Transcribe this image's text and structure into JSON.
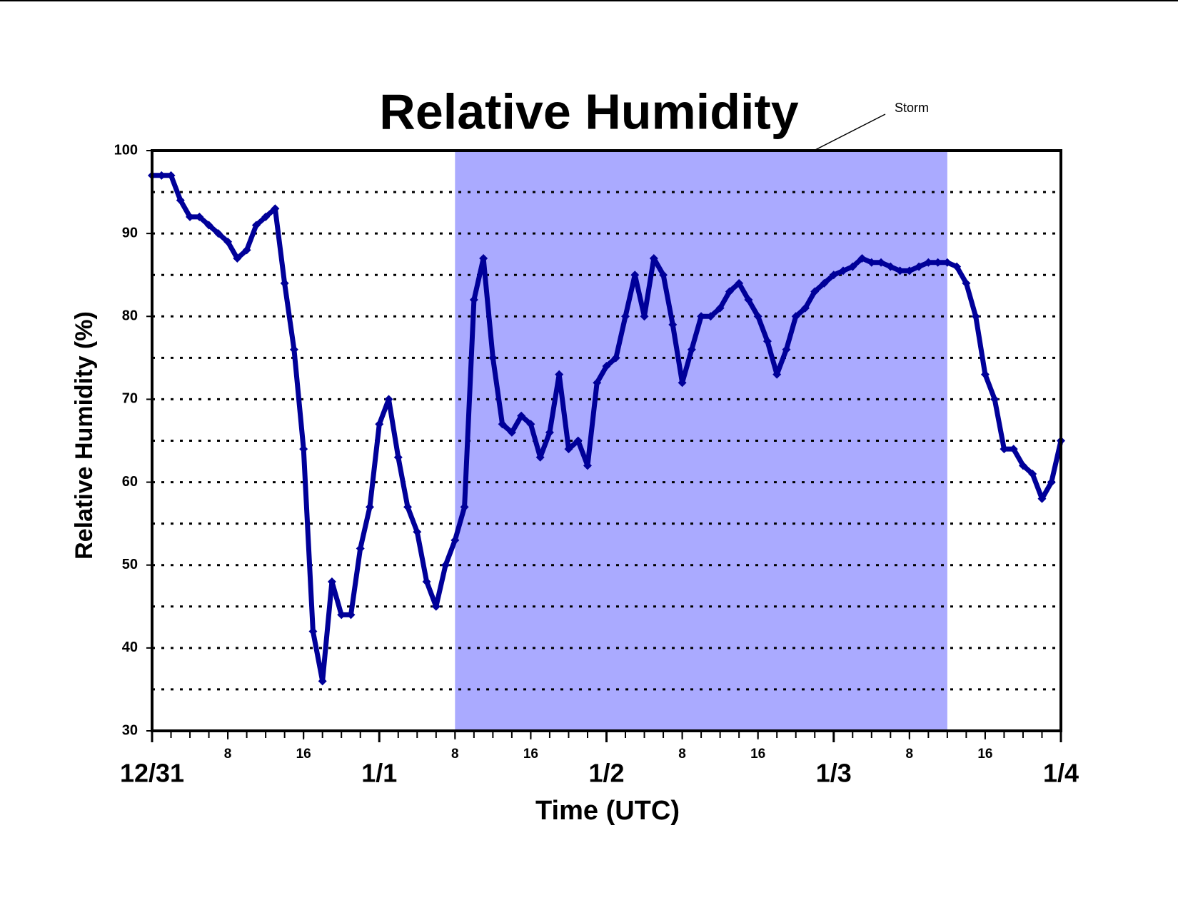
{
  "chart_data": {
    "type": "scatter",
    "title": "Relative Humidity",
    "x_label": "Time (UTC)",
    "y_label": "Relative Humidity (%)",
    "xlim": [
      0,
      96
    ],
    "ylim": [
      30,
      100
    ],
    "yticks": [
      30,
      40,
      50,
      60,
      70,
      80,
      90,
      100
    ],
    "gridlines": [
      35,
      40,
      45,
      50,
      55,
      60,
      65,
      70,
      75,
      80,
      85,
      90,
      95
    ],
    "grid": true,
    "xticks": [
      {
        "value": 0,
        "label": "12/31"
      },
      8,
      16,
      {
        "value": 24,
        "label": "1/1"
      },
      8,
      16,
      {
        "value": 48,
        "label": "1/2"
      },
      8,
      16,
      {
        "value": 72,
        "label": "1/3"
      },
      8,
      16,
      {
        "value": 96,
        "label": "1/4"
      }
    ],
    "xminorticks": [
      0,
      2,
      4,
      6,
      8,
      10,
      12,
      14,
      16,
      18,
      20,
      22,
      24,
      26,
      28,
      30,
      32,
      34,
      36,
      38,
      40,
      42,
      44,
      46,
      48,
      50,
      52,
      54,
      56,
      58,
      60,
      62,
      64,
      66,
      68,
      70,
      72,
      74,
      76,
      78,
      80,
      82,
      84,
      86,
      88,
      90,
      92,
      94,
      96
    ],
    "shaded_region": {
      "x": [
        32,
        84
      ],
      "color": "#aaaaff",
      "label": "Storm"
    },
    "series": [
      {
        "color": "#000099",
        "x": [
          0,
          1,
          2,
          3,
          4,
          5,
          6,
          7,
          8,
          9,
          10,
          11,
          12,
          13,
          14,
          15,
          16,
          17,
          18,
          19,
          20,
          21,
          22,
          23,
          24,
          25,
          26,
          27,
          28,
          29,
          30,
          31,
          32,
          33,
          34,
          35,
          36,
          37,
          38,
          39,
          40,
          41,
          42,
          43,
          44,
          45,
          46,
          47,
          48,
          49,
          50,
          51,
          52,
          53,
          54,
          55,
          56,
          57,
          58,
          59,
          60,
          61,
          62,
          63,
          64,
          65,
          66,
          67,
          68,
          69,
          70,
          71,
          72,
          73,
          74,
          75,
          76,
          77,
          78,
          79,
          80,
          81,
          82,
          83,
          84,
          85,
          86,
          87,
          88,
          89,
          90,
          91,
          92,
          93,
          94,
          95,
          96
        ],
        "values": [
          97,
          97,
          97,
          94,
          92,
          92,
          91,
          90,
          89,
          87,
          88,
          91,
          92,
          93,
          84,
          76,
          64,
          42,
          36,
          48,
          44,
          44,
          52,
          57,
          67,
          70,
          63,
          57,
          54,
          48,
          45,
          50,
          53,
          57,
          82,
          87,
          75,
          67,
          66,
          68,
          67,
          63,
          66,
          73,
          64,
          65,
          62,
          72,
          74,
          75,
          80,
          85,
          80,
          87,
          85,
          79,
          72,
          76,
          80,
          80,
          81,
          83,
          84,
          82,
          80,
          77,
          73,
          76,
          80,
          81,
          83,
          84,
          85,
          85.5,
          86,
          87,
          86.5,
          86.5,
          86,
          85.5,
          85.5,
          86,
          86.5,
          86.5,
          86.5,
          86,
          84,
          80,
          73,
          70,
          64,
          64,
          62,
          61,
          58,
          60,
          65
        ]
      }
    ]
  }
}
